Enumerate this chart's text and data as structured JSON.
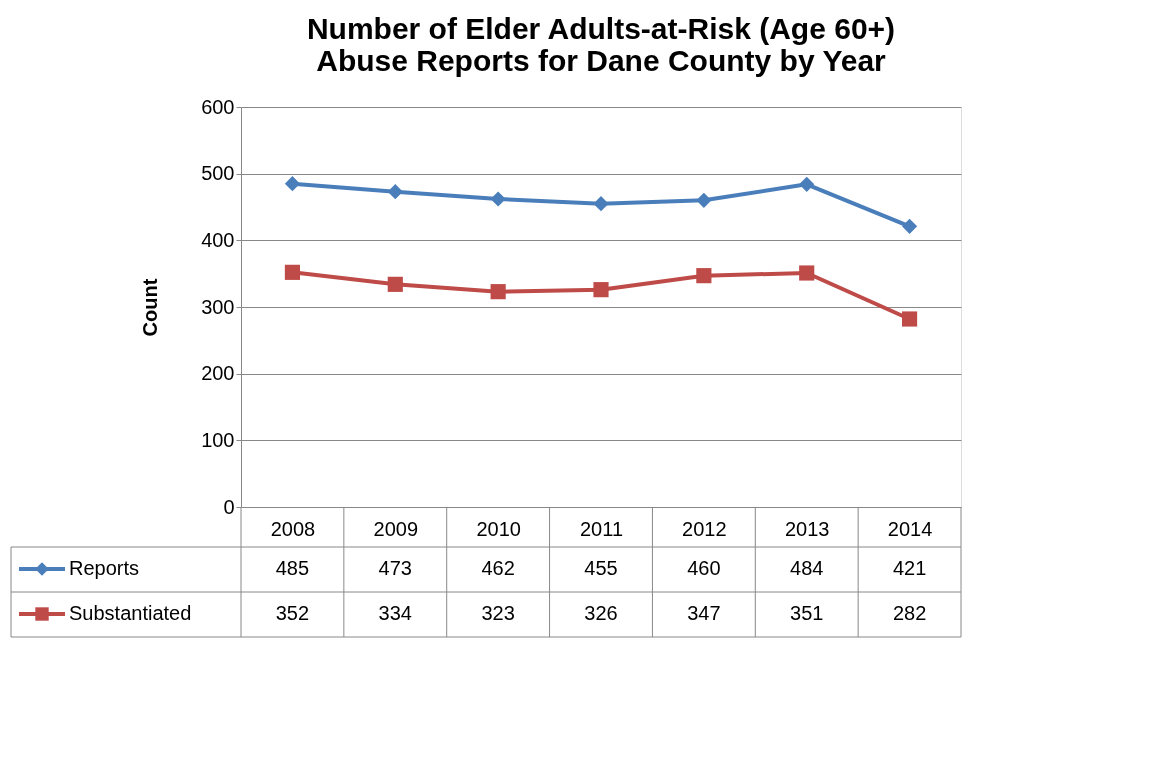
{
  "chart_data": {
    "type": "line",
    "title": "Number of Elder Adults-at-Risk (Age 60+) Abuse Reports for Dane County by Year",
    "ylabel": "Count",
    "categories": [
      "2008",
      "2009",
      "2010",
      "2011",
      "2012",
      "2013",
      "2014"
    ],
    "series": [
      {
        "name": "Reports",
        "color": "#4a7ebb",
        "marker": "diamond",
        "values": [
          485,
          473,
          462,
          455,
          460,
          484,
          421
        ]
      },
      {
        "name": "Substantiated",
        "color": "#be4b48",
        "marker": "square",
        "values": [
          352,
          334,
          323,
          326,
          347,
          351,
          282
        ]
      }
    ],
    "ylim": [
      0,
      600
    ],
    "yticks": [
      0,
      100,
      200,
      300,
      400,
      500,
      600
    ],
    "grid": "y",
    "legend": "bottom",
    "data_labels": true,
    "line_style": "solid"
  }
}
